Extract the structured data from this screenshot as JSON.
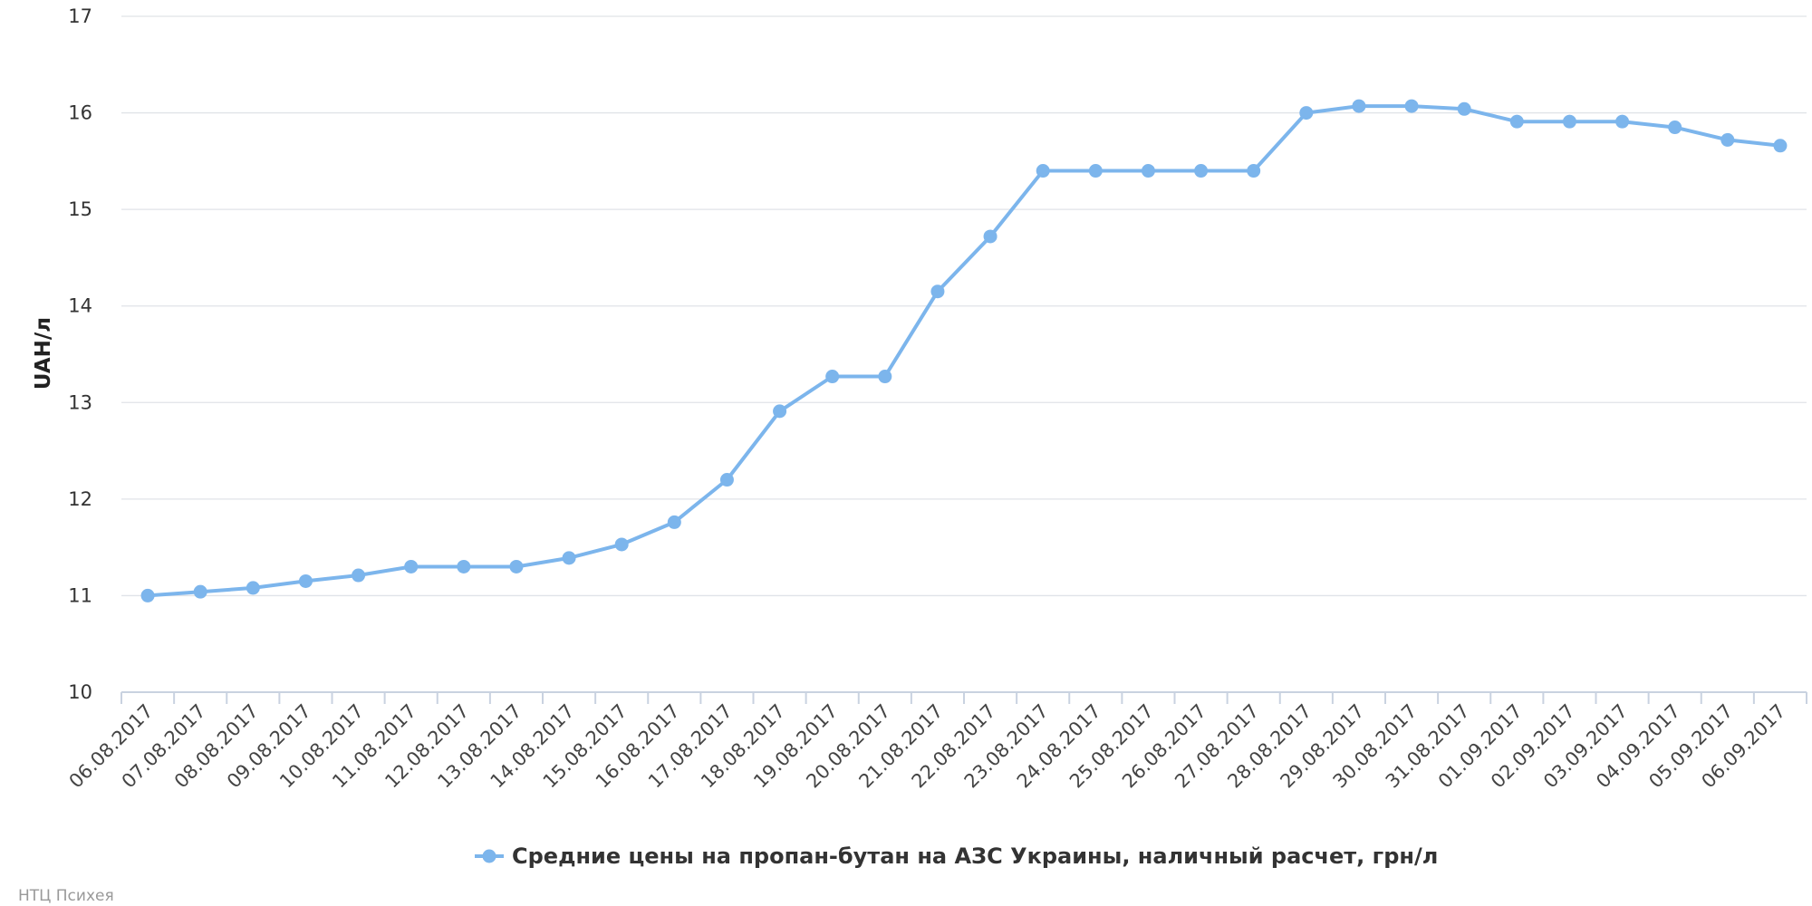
{
  "chart_data": {
    "type": "line",
    "xlabel": "",
    "ylabel": "UAH/л",
    "ylim": [
      10,
      17
    ],
    "yticks": [
      10,
      11,
      12,
      13,
      14,
      15,
      16,
      17
    ],
    "grid": true,
    "legend_position": "bottom-center",
    "categories": [
      "06.08.2017",
      "07.08.2017",
      "08.08.2017",
      "09.08.2017",
      "10.08.2017",
      "11.08.2017",
      "12.08.2017",
      "13.08.2017",
      "14.08.2017",
      "15.08.2017",
      "16.08.2017",
      "17.08.2017",
      "18.08.2017",
      "19.08.2017",
      "20.08.2017",
      "21.08.2017",
      "22.08.2017",
      "23.08.2017",
      "24.08.2017",
      "25.08.2017",
      "26.08.2017",
      "27.08.2017",
      "28.08.2017",
      "29.08.2017",
      "30.08.2017",
      "31.08.2017",
      "01.09.2017",
      "02.09.2017",
      "03.09.2017",
      "04.09.2017",
      "05.09.2017",
      "06.09.2017"
    ],
    "series": [
      {
        "name": "Средние цены на пропан-бутан на АЗС Украины, наличный расчет, грн/л",
        "color": "#7cb5ec",
        "values": [
          11.0,
          11.04,
          11.08,
          11.15,
          11.21,
          11.3,
          11.3,
          11.3,
          11.39,
          11.53,
          11.76,
          12.2,
          12.91,
          13.27,
          13.27,
          14.15,
          14.72,
          15.4,
          15.4,
          15.4,
          15.4,
          15.4,
          16.0,
          16.07,
          16.07,
          16.04,
          15.91,
          15.91,
          15.91,
          15.85,
          15.72,
          15.66
        ]
      }
    ]
  },
  "credit": "НТЦ Психея"
}
